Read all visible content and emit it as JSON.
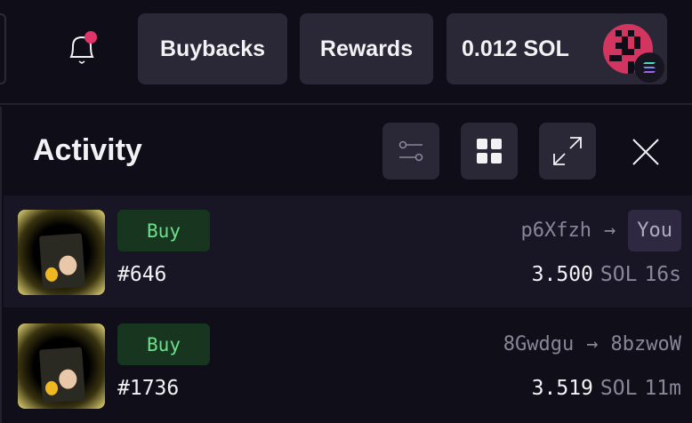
{
  "header": {
    "buybacks": "Buybacks",
    "rewards": "Rewards",
    "balance": "0.012 SOL",
    "accent": "#e0356b"
  },
  "panel": {
    "title": "Activity",
    "icons": [
      "filter-icon",
      "grid-icon",
      "expand-icon",
      "close-icon"
    ]
  },
  "activity": [
    {
      "type": "Buy",
      "token": "#646",
      "from": "p6Xfzh",
      "to": "You",
      "amount": "3.500",
      "unit": "SOL",
      "time": "16s"
    },
    {
      "type": "Buy",
      "token": "#1736",
      "from": "8Gwdgu",
      "to": "8bzwoW",
      "amount": "3.519",
      "unit": "SOL",
      "time": "11m"
    }
  ]
}
